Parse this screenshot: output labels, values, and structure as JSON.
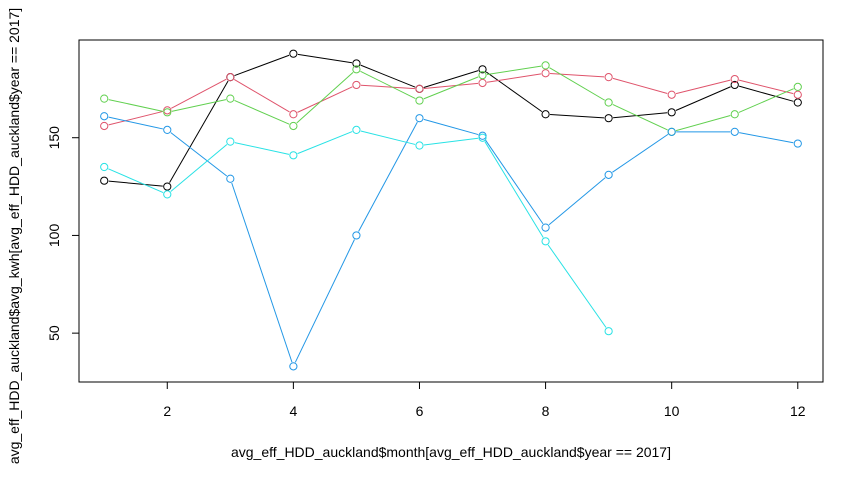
{
  "chart_data": {
    "type": "line",
    "xlabel": "avg_eff_HDD_auckland$month[avg_eff_HDD_auckland$year == 2017]",
    "ylabel": "avg_eff_HDD_auckland$avg_kwh[avg_eff_HDD_auckland$year == 2017]",
    "xlim": [
      0.6,
      12.4
    ],
    "ylim": [
      25,
      200
    ],
    "x_ticks": [
      2,
      4,
      6,
      8,
      10,
      12
    ],
    "y_ticks": [
      50,
      100,
      150
    ],
    "markers": "open-circle",
    "grid": false,
    "series": [
      {
        "color": "#000000",
        "x": [
          1,
          2,
          3,
          4,
          5,
          6,
          7,
          8,
          9,
          10,
          11,
          12
        ],
        "values": [
          128,
          125,
          181,
          193,
          188,
          175,
          185,
          162,
          160,
          163,
          177,
          168
        ]
      },
      {
        "color": "#DF536B",
        "x": [
          1,
          2,
          3,
          4,
          5,
          6,
          7,
          8,
          9,
          10,
          11,
          12
        ],
        "values": [
          156,
          164,
          181,
          162,
          177,
          175,
          178,
          183,
          181,
          172,
          180,
          172
        ]
      },
      {
        "color": "#61D04F",
        "x": [
          1,
          2,
          3,
          4,
          5,
          6,
          7,
          8,
          9,
          10,
          11,
          12
        ],
        "values": [
          170,
          163,
          170,
          156,
          185,
          169,
          182,
          187,
          168,
          153,
          162,
          176
        ]
      },
      {
        "color": "#2297E6",
        "x": [
          1,
          2,
          3,
          4,
          5,
          6,
          7,
          8,
          9,
          10,
          11,
          12
        ],
        "values": [
          161,
          154,
          129,
          33,
          100,
          160,
          151,
          104,
          131,
          153,
          153,
          147
        ]
      },
      {
        "color": "#28E2E5",
        "x": [
          1,
          2,
          3,
          4,
          5,
          6,
          7,
          8,
          9
        ],
        "values": [
          135,
          121,
          148,
          141,
          154,
          146,
          150,
          97,
          51
        ]
      }
    ]
  }
}
